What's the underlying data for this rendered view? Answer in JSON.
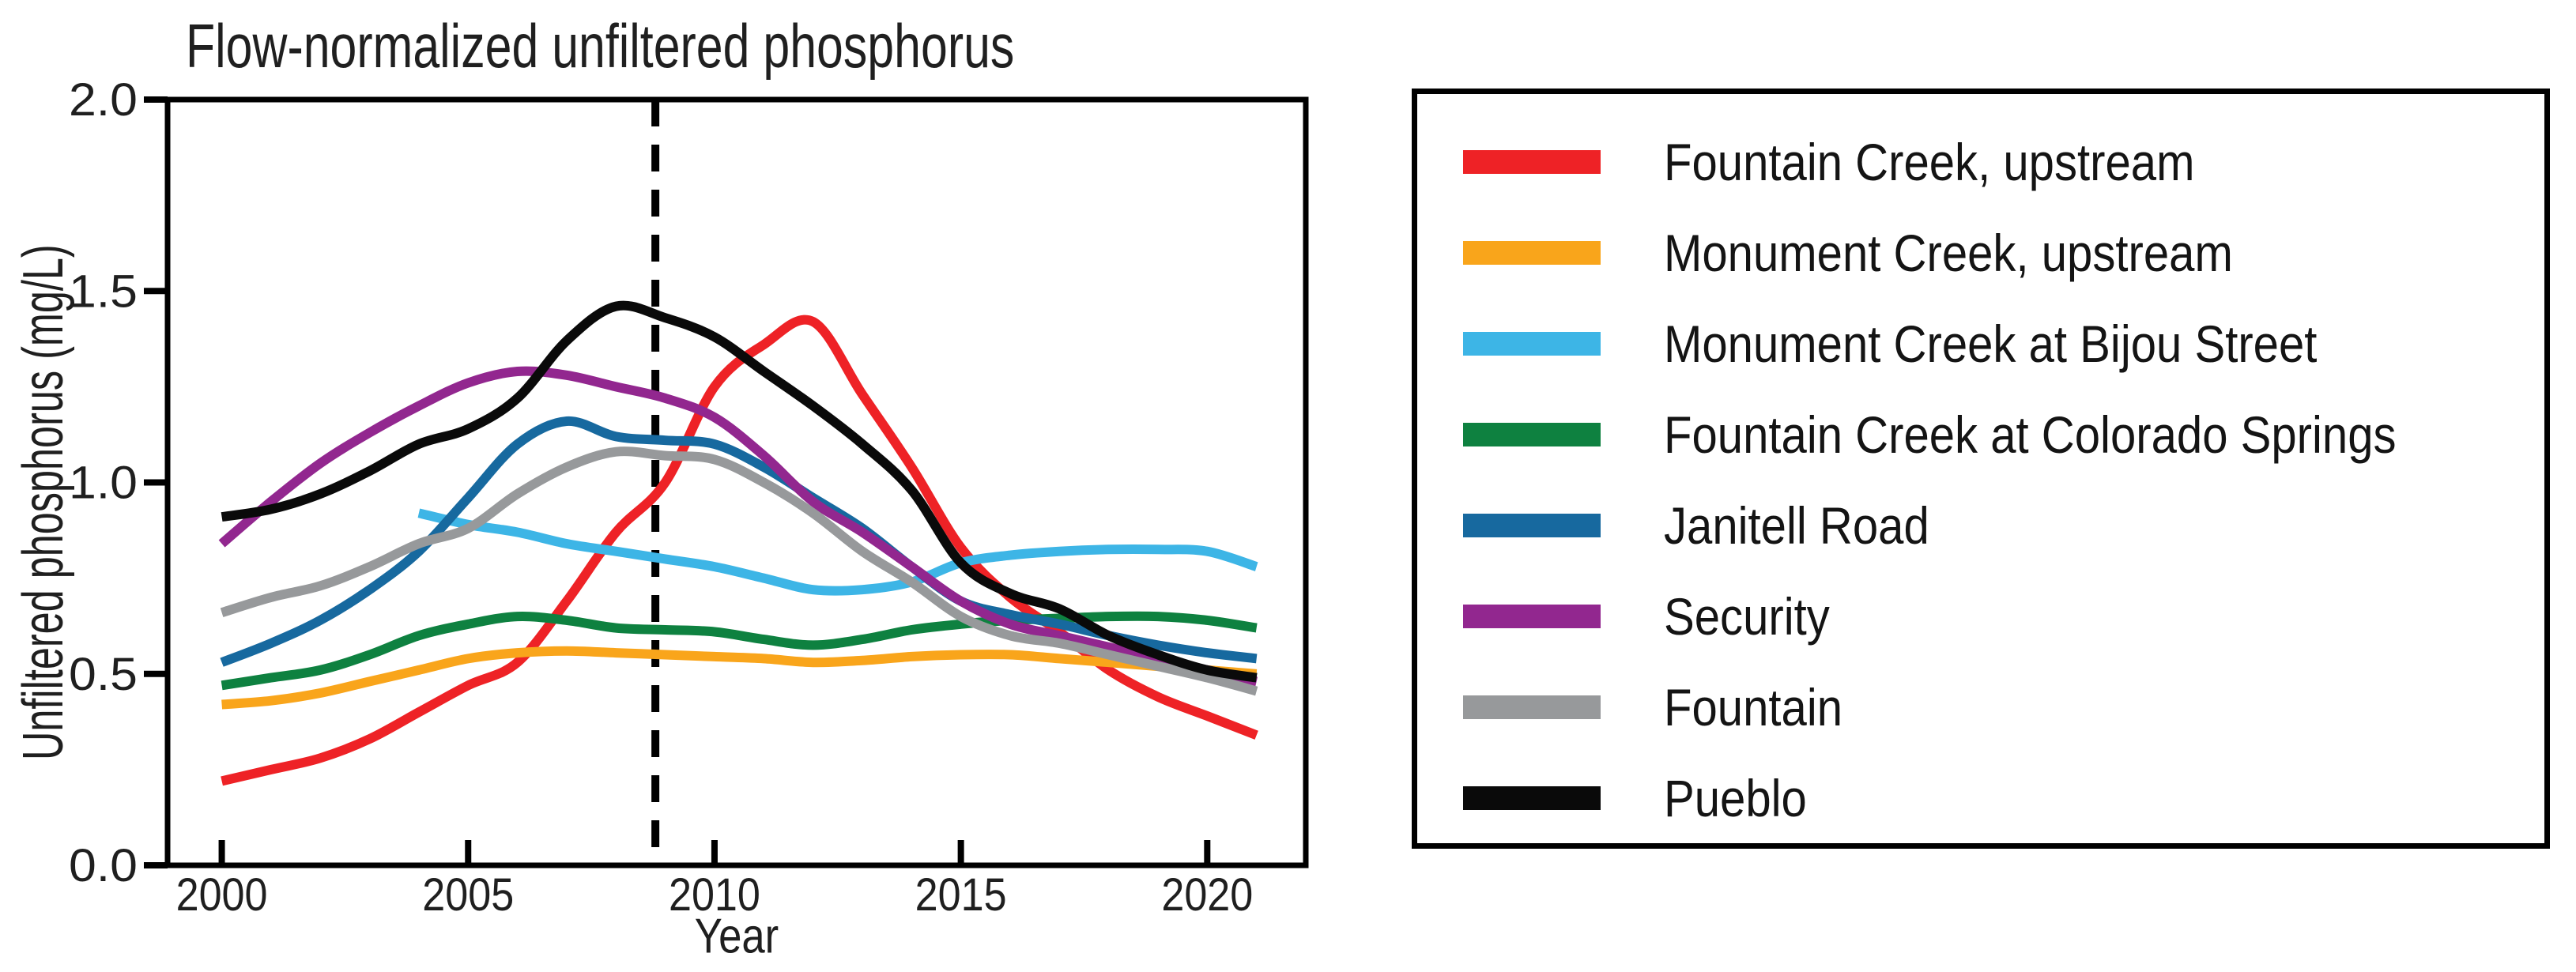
{
  "chart_data": {
    "type": "line",
    "title": "Flow-normalized unfiltered phosphorus",
    "xlabel": "Year",
    "ylabel": "Unfiltered phosphorus (mg/L)",
    "xlim": [
      1998.9,
      2022.0
    ],
    "ylim": [
      0.0,
      2.0
    ],
    "xticks": [
      2000,
      2005,
      2010,
      2015,
      2020
    ],
    "ytick_labels": [
      "0.0",
      "0.5",
      "1.0",
      "1.5",
      "2.0"
    ],
    "grid": false,
    "legend_position": "right of plot, boxed",
    "vline": {
      "x": 2008.8,
      "style": "dashed",
      "color": "#000000"
    },
    "x_step": 1,
    "series": [
      {
        "name": "Fountain Creek, upstream",
        "color": "#ee2226",
        "start_year": 2000,
        "values": [
          0.22,
          0.25,
          0.28,
          0.33,
          0.4,
          0.47,
          0.53,
          0.69,
          0.87,
          1.0,
          1.25,
          1.36,
          1.42,
          1.23,
          1.04,
          0.83,
          0.7,
          0.61,
          0.51,
          0.44,
          0.39,
          0.34
        ]
      },
      {
        "name": "Monument Creek, upstream",
        "color": "#f9a51b",
        "start_year": 2000,
        "values": [
          0.42,
          0.43,
          0.45,
          0.48,
          0.51,
          0.54,
          0.555,
          0.56,
          0.555,
          0.55,
          0.545,
          0.54,
          0.53,
          0.535,
          0.545,
          0.55,
          0.55,
          0.54,
          0.53,
          0.52,
          0.51,
          0.5
        ]
      },
      {
        "name": "Monument Creek at Bijou Street",
        "color": "#3db5e6",
        "start_year": 2004,
        "values": [
          0.92,
          0.89,
          0.87,
          0.84,
          0.82,
          0.8,
          0.78,
          0.75,
          0.72,
          0.72,
          0.74,
          0.79,
          0.81,
          0.82,
          0.825,
          0.825,
          0.82,
          0.78
        ]
      },
      {
        "name": "Fountain Creek at Colorado Springs",
        "color": "#0e8140",
        "start_year": 2000,
        "values": [
          0.47,
          0.49,
          0.51,
          0.55,
          0.6,
          0.63,
          0.65,
          0.64,
          0.62,
          0.615,
          0.61,
          0.59,
          0.575,
          0.59,
          0.615,
          0.63,
          0.64,
          0.645,
          0.65,
          0.65,
          0.64,
          0.62
        ]
      },
      {
        "name": "Janitell Road",
        "color": "#17699f",
        "start_year": 2000,
        "values": [
          0.53,
          0.58,
          0.64,
          0.72,
          0.82,
          0.96,
          1.1,
          1.16,
          1.12,
          1.11,
          1.1,
          1.04,
          0.96,
          0.88,
          0.78,
          0.69,
          0.655,
          0.63,
          0.6,
          0.575,
          0.555,
          0.54
        ]
      },
      {
        "name": "Security",
        "color": "#92278f",
        "start_year": 2000,
        "values": [
          0.84,
          0.95,
          1.05,
          1.13,
          1.2,
          1.26,
          1.29,
          1.28,
          1.25,
          1.22,
          1.17,
          1.07,
          0.95,
          0.87,
          0.78,
          0.69,
          0.63,
          0.6,
          0.57,
          0.54,
          0.51,
          0.48
        ]
      },
      {
        "name": "Fountain",
        "color": "#97999b",
        "start_year": 2000,
        "values": [
          0.66,
          0.7,
          0.73,
          0.78,
          0.84,
          0.88,
          0.97,
          1.04,
          1.08,
          1.07,
          1.06,
          1.0,
          0.92,
          0.82,
          0.74,
          0.65,
          0.6,
          0.58,
          0.55,
          0.52,
          0.49,
          0.455
        ]
      },
      {
        "name": "Pueblo",
        "color": "#0a0a0a",
        "start_year": 2000,
        "values": [
          0.91,
          0.93,
          0.97,
          1.03,
          1.1,
          1.14,
          1.22,
          1.37,
          1.46,
          1.43,
          1.38,
          1.29,
          1.2,
          1.1,
          0.98,
          0.79,
          0.71,
          0.67,
          0.6,
          0.55,
          0.51,
          0.49
        ]
      }
    ]
  }
}
